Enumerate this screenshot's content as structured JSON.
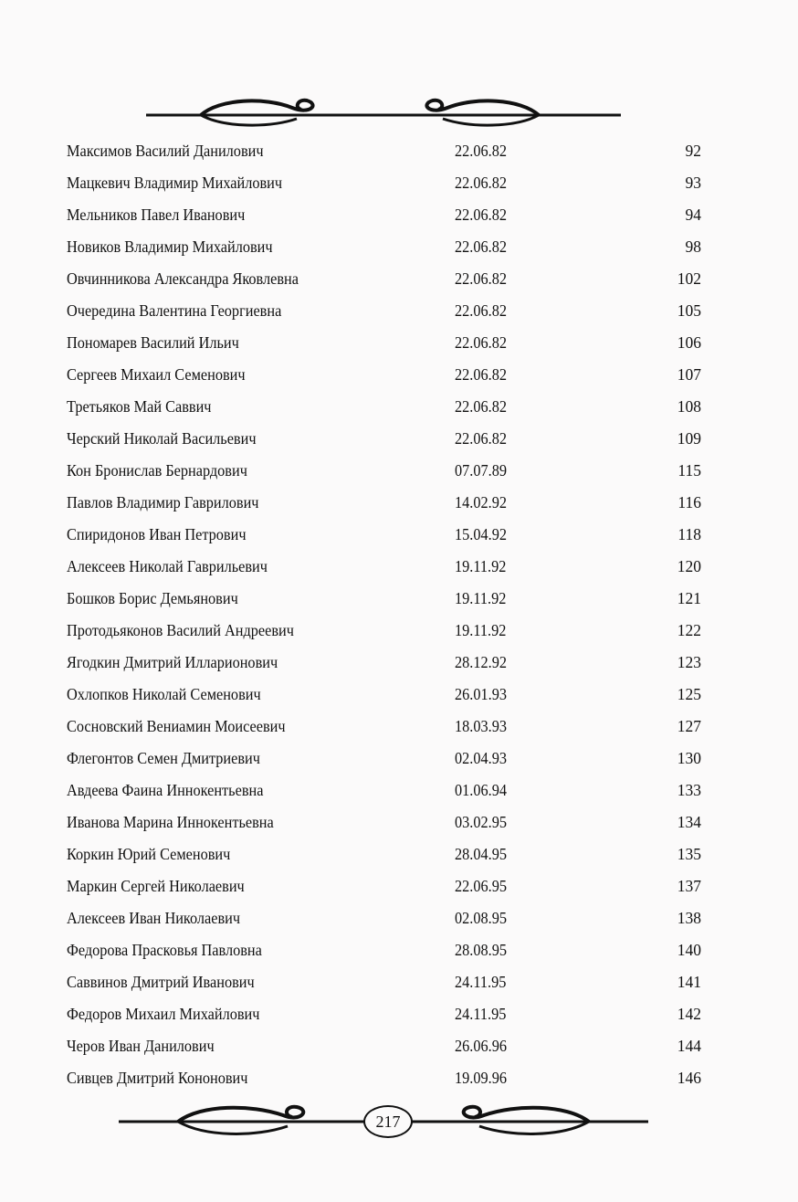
{
  "entries": [
    {
      "name": "Максимов Василий Данилович",
      "date": "22.06.82",
      "number": "92"
    },
    {
      "name": "Мацкевич Владимир Михайлович",
      "date": "22.06.82",
      "number": "93"
    },
    {
      "name": "Мельников Павел Иванович",
      "date": "22.06.82",
      "number": "94"
    },
    {
      "name": "Новиков Владимир Михайлович",
      "date": "22.06.82",
      "number": "98"
    },
    {
      "name": "Овчинникова Александра Яковлевна",
      "date": "22.06.82",
      "number": "102"
    },
    {
      "name": "Очередина Валентина Георгиевна",
      "date": "22.06.82",
      "number": "105"
    },
    {
      "name": "Пономарев Василий Ильич",
      "date": "22.06.82",
      "number": "106"
    },
    {
      "name": "Сергеев Михаил Семенович",
      "date": "22.06.82",
      "number": "107"
    },
    {
      "name": "Третьяков Май Саввич",
      "date": "22.06.82",
      "number": "108"
    },
    {
      "name": "Черский Николай Васильевич",
      "date": "22.06.82",
      "number": "109"
    },
    {
      "name": "Кон Бронислав Бернардович",
      "date": "07.07.89",
      "number": "115"
    },
    {
      "name": "Павлов Владимир Гаврилович",
      "date": "14.02.92",
      "number": "116"
    },
    {
      "name": "Спиридонов Иван Петрович",
      "date": "15.04.92",
      "number": "118"
    },
    {
      "name": "Алексеев Николай Гаврильевич",
      "date": "19.11.92",
      "number": "120"
    },
    {
      "name": "Бошков Борис Демьянович",
      "date": "19.11.92",
      "number": "121"
    },
    {
      "name": "Протодьяконов Василий Андреевич",
      "date": "19.11.92",
      "number": "122"
    },
    {
      "name": "Ягодкин Дмитрий Илларионович",
      "date": "28.12.92",
      "number": "123"
    },
    {
      "name": "Охлопков Николай Семенович",
      "date": "26.01.93",
      "number": "125"
    },
    {
      "name": "Сосновский Вениамин Моисеевич",
      "date": "18.03.93",
      "number": "127"
    },
    {
      "name": "Флегонтов Семен Дмитриевич",
      "date": "02.04.93",
      "number": "130"
    },
    {
      "name": "Авдеева Фаина Иннокентьевна",
      "date": "01.06.94",
      "number": "133"
    },
    {
      "name": "Иванова Марина Иннокентьевна",
      "date": "03.02.95",
      "number": "134"
    },
    {
      "name": "Коркин Юрий Семенович",
      "date": "28.04.95",
      "number": "135"
    },
    {
      "name": "Маркин Сергей Николаевич",
      "date": "22.06.95",
      "number": "137"
    },
    {
      "name": "Алексеев Иван Николаевич",
      "date": "02.08.95",
      "number": "138"
    },
    {
      "name": "Федорова Прасковья Павловна",
      "date": "28.08.95",
      "number": "140"
    },
    {
      "name": "Саввинов Дмитрий Иванович",
      "date": "24.11.95",
      "number": "141"
    },
    {
      "name": "Федоров Михаил Михайлович",
      "date": "24.11.95",
      "number": "142"
    },
    {
      "name": "Черов Иван Данилович",
      "date": "26.06.96",
      "number": "144"
    },
    {
      "name": "Сивцев Дмитрий Кононович",
      "date": "19.09.96",
      "number": "146"
    }
  ],
  "page_number": "217"
}
